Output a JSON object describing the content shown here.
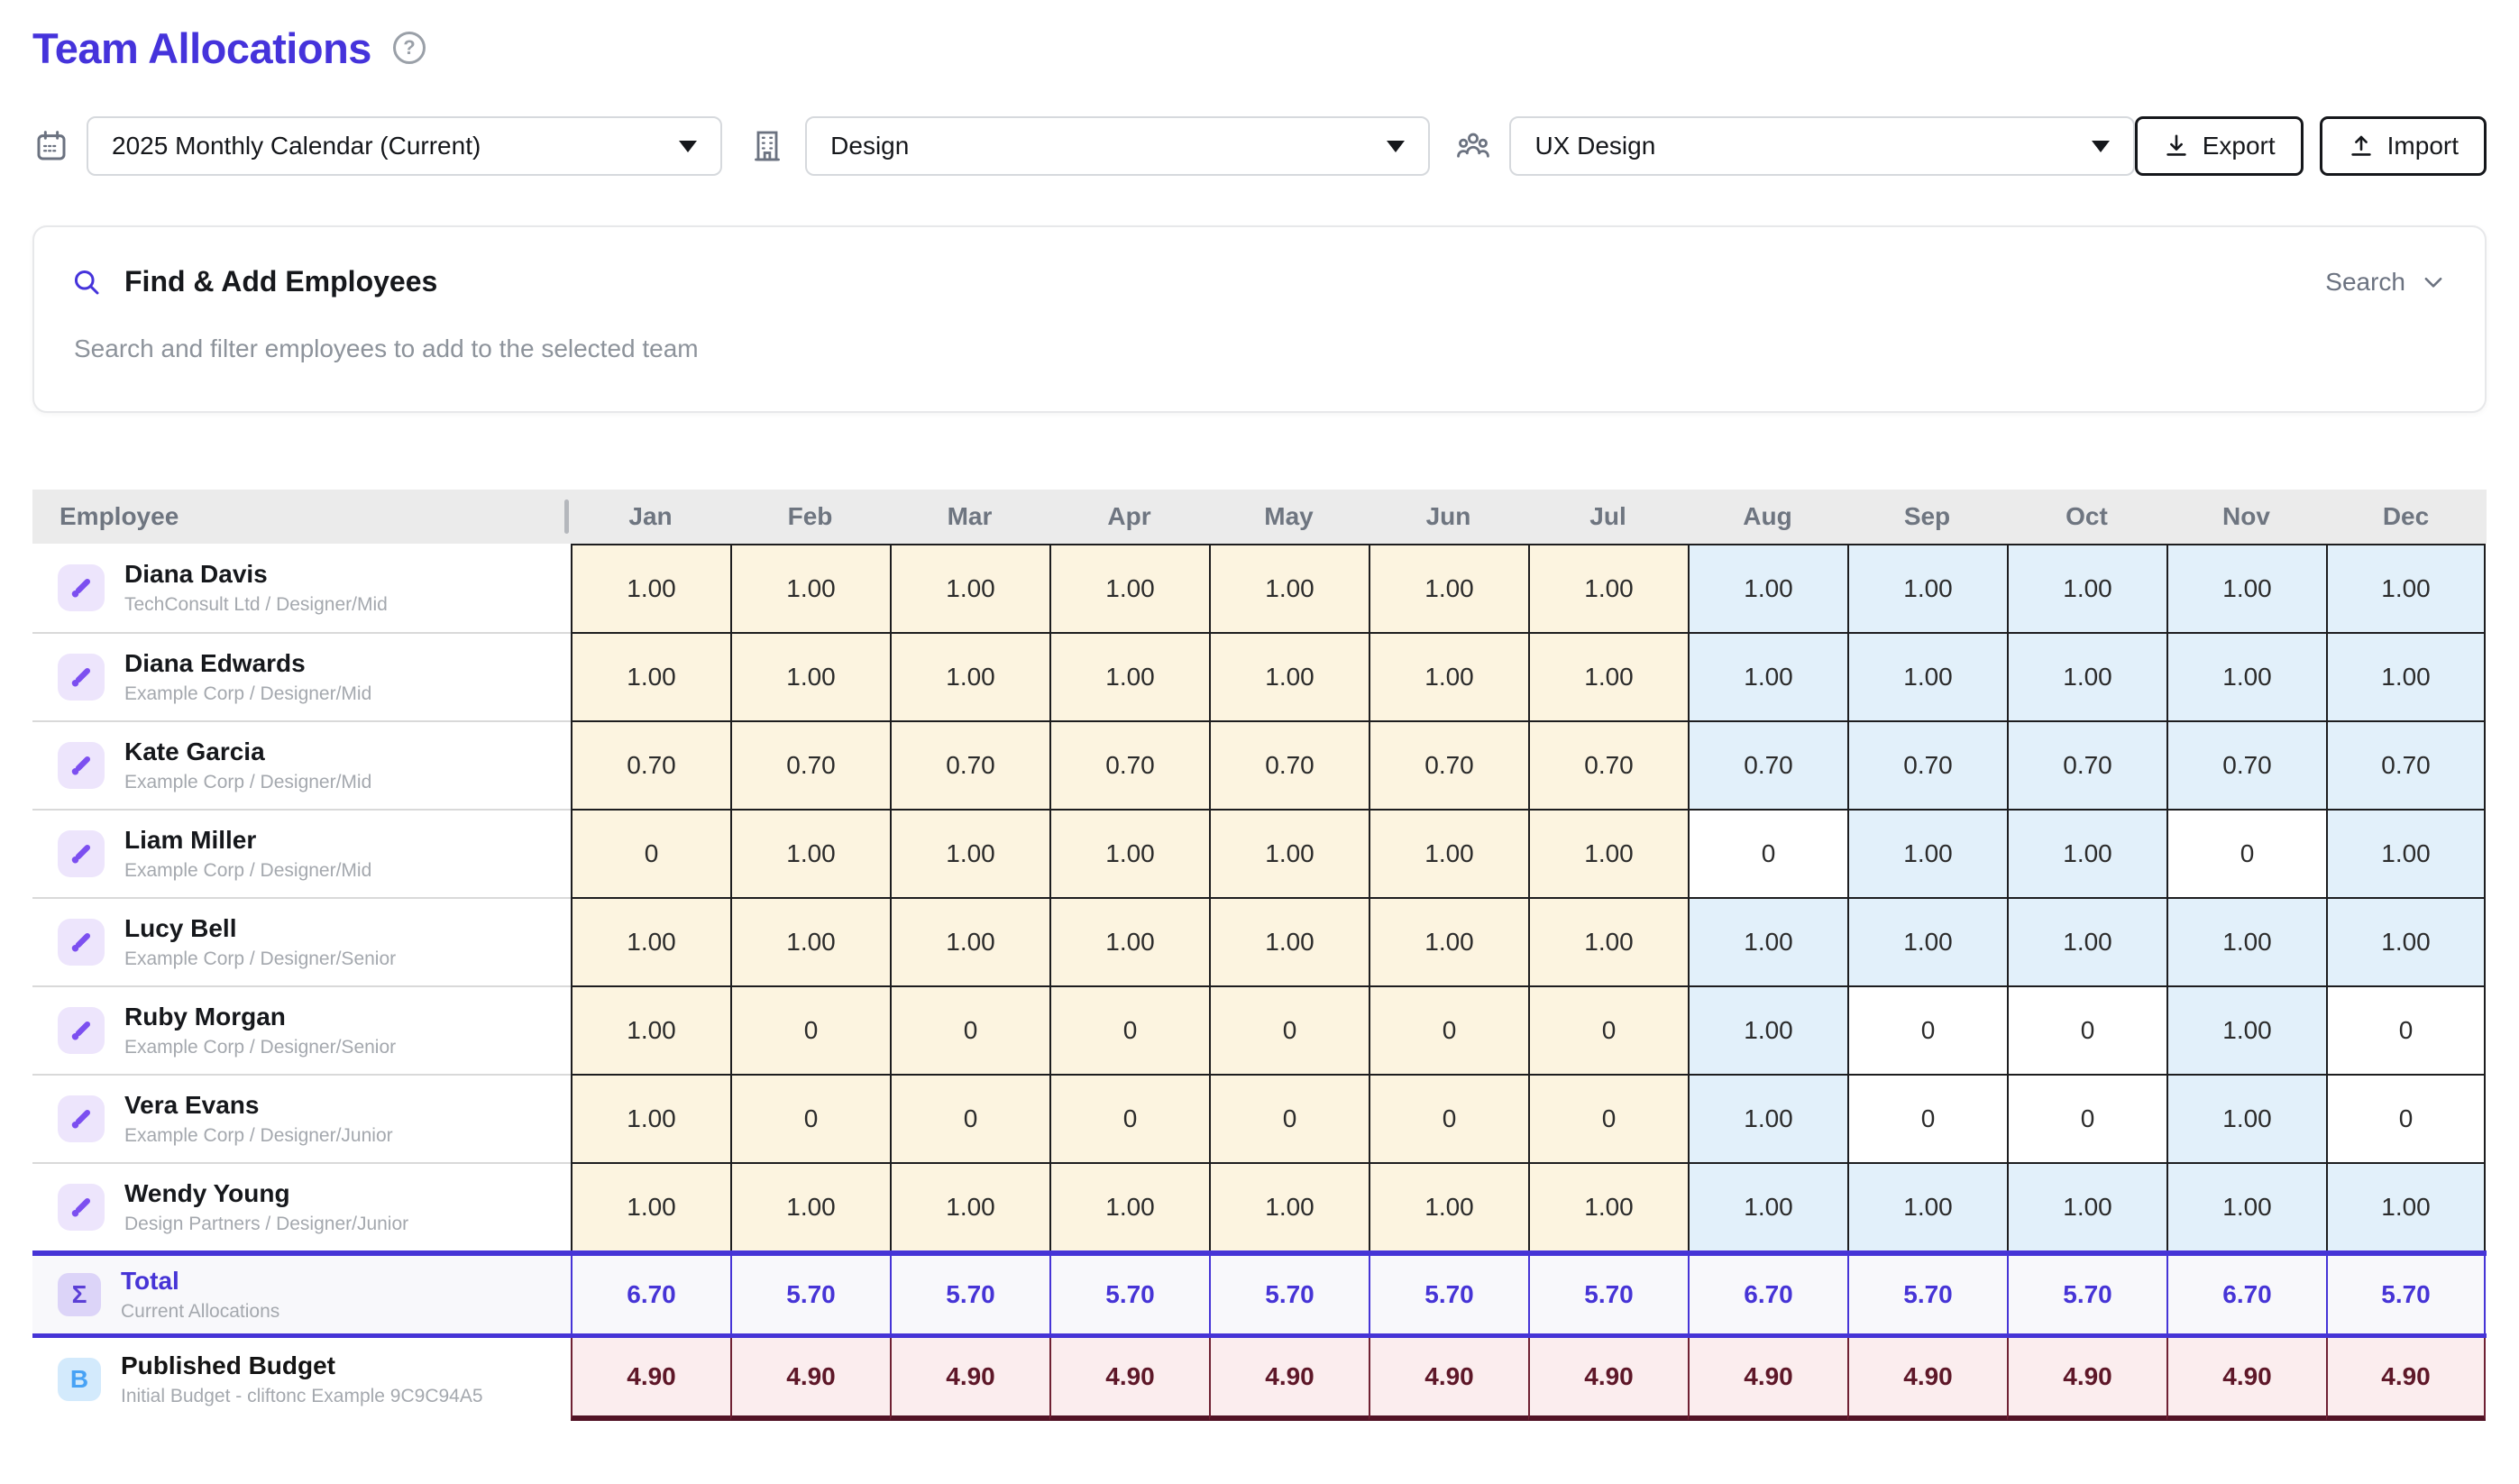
{
  "page": {
    "title": "Team Allocations"
  },
  "toolbar": {
    "calendar_select": "2025 Monthly Calendar (Current)",
    "department_select": "Design",
    "team_select": "UX Design",
    "export_label": "Export",
    "import_label": "Import"
  },
  "search_panel": {
    "title": "Find & Add Employees",
    "subtitle": "Search and filter employees to add to the selected team",
    "toggle_label": "Search"
  },
  "table": {
    "employee_header": "Employee",
    "months": [
      "Jan",
      "Feb",
      "Mar",
      "Apr",
      "May",
      "Jun",
      "Jul",
      "Aug",
      "Sep",
      "Oct",
      "Nov",
      "Dec"
    ],
    "actual_month_count": 7,
    "rows": [
      {
        "name": "Diana Davis",
        "detail": "TechConsult Ltd / Designer/Mid",
        "values": [
          "1.00",
          "1.00",
          "1.00",
          "1.00",
          "1.00",
          "1.00",
          "1.00",
          "1.00",
          "1.00",
          "1.00",
          "1.00",
          "1.00"
        ]
      },
      {
        "name": "Diana Edwards",
        "detail": "Example Corp / Designer/Mid",
        "values": [
          "1.00",
          "1.00",
          "1.00",
          "1.00",
          "1.00",
          "1.00",
          "1.00",
          "1.00",
          "1.00",
          "1.00",
          "1.00",
          "1.00"
        ]
      },
      {
        "name": "Kate Garcia",
        "detail": "Example Corp / Designer/Mid",
        "values": [
          "0.70",
          "0.70",
          "0.70",
          "0.70",
          "0.70",
          "0.70",
          "0.70",
          "0.70",
          "0.70",
          "0.70",
          "0.70",
          "0.70"
        ]
      },
      {
        "name": "Liam Miller",
        "detail": "Example Corp / Designer/Mid",
        "values": [
          "0",
          "1.00",
          "1.00",
          "1.00",
          "1.00",
          "1.00",
          "1.00",
          "0",
          "1.00",
          "1.00",
          "0",
          "1.00"
        ]
      },
      {
        "name": "Lucy Bell",
        "detail": "Example Corp / Designer/Senior",
        "values": [
          "1.00",
          "1.00",
          "1.00",
          "1.00",
          "1.00",
          "1.00",
          "1.00",
          "1.00",
          "1.00",
          "1.00",
          "1.00",
          "1.00"
        ]
      },
      {
        "name": "Ruby Morgan",
        "detail": "Example Corp / Designer/Senior",
        "values": [
          "1.00",
          "0",
          "0",
          "0",
          "0",
          "0",
          "0",
          "1.00",
          "0",
          "0",
          "1.00",
          "0"
        ]
      },
      {
        "name": "Vera Evans",
        "detail": "Example Corp / Designer/Junior",
        "values": [
          "1.00",
          "0",
          "0",
          "0",
          "0",
          "0",
          "0",
          "1.00",
          "0",
          "0",
          "1.00",
          "0"
        ]
      },
      {
        "name": "Wendy Young",
        "detail": "Design Partners / Designer/Junior",
        "values": [
          "1.00",
          "1.00",
          "1.00",
          "1.00",
          "1.00",
          "1.00",
          "1.00",
          "1.00",
          "1.00",
          "1.00",
          "1.00",
          "1.00"
        ]
      }
    ],
    "total": {
      "label": "Total",
      "detail": "Current Allocations",
      "sigma_glyph": "Σ",
      "values": [
        "6.70",
        "5.70",
        "5.70",
        "5.70",
        "5.70",
        "5.70",
        "5.70",
        "6.70",
        "5.70",
        "5.70",
        "6.70",
        "5.70"
      ]
    },
    "budget": {
      "label": "Published Budget",
      "detail": "Initial Budget - cliftonc Example 9C9C94A5",
      "badge_glyph": "B",
      "values": [
        "4.90",
        "4.90",
        "4.90",
        "4.90",
        "4.90",
        "4.90",
        "4.90",
        "4.90",
        "4.90",
        "4.90",
        "4.90",
        "4.90"
      ]
    }
  },
  "colors": {
    "title": "#4533db",
    "accent": "#4634d6",
    "header_bg": "#ebebeb",
    "cream_cell": "#fcf4e0",
    "blue_cell": "#e2f0fa",
    "white_cell": "#ffffff",
    "grid_border": "#1d1d1f",
    "total_bg": "#f8f8fb",
    "budget_bg": "#fbedee",
    "budget_border": "#6f2133",
    "budget_bottom": "#521325",
    "budget_text": "#5e1728",
    "avatar_purple_bg": "#ede5fc",
    "avatar_purple": "#7c4ff0",
    "sigma_bg": "#dcd4f8",
    "sigma_text": "#5b3fd6",
    "b_bg": "#d3eafc",
    "b_text": "#47a2f5"
  }
}
